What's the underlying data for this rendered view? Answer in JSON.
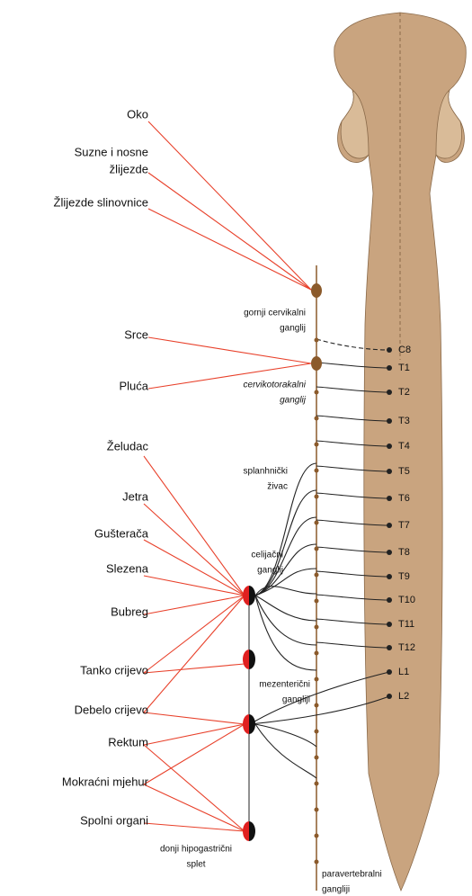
{
  "organs": [
    {
      "lines": [
        "Oko"
      ]
    },
    {
      "lines": [
        "Suzne i nosne",
        "žlijezde"
      ]
    },
    {
      "lines": [
        "Žlijezde slinovnice"
      ]
    },
    {
      "lines": [
        "Srce"
      ]
    },
    {
      "lines": [
        "Pluća"
      ]
    },
    {
      "lines": [
        "Želudac"
      ]
    },
    {
      "lines": [
        "Jetra"
      ]
    },
    {
      "lines": [
        "Gušterača"
      ]
    },
    {
      "lines": [
        "Slezena"
      ]
    },
    {
      "lines": [
        "Bubreg"
      ]
    },
    {
      "lines": [
        "Tanko crijevo"
      ]
    },
    {
      "lines": [
        "Debelo crijevo"
      ]
    },
    {
      "lines": [
        "Rektum"
      ]
    },
    {
      "lines": [
        "Mokraćni mjehur"
      ]
    },
    {
      "lines": [
        "Spolni organi"
      ]
    }
  ],
  "ganglia": [
    {
      "lines": [
        "gornji cervikalni",
        "ganglij"
      ]
    },
    {
      "lines": [
        "cervikotorakalni",
        "ganglij"
      ]
    },
    {
      "lines": [
        "splanhnički",
        "živac"
      ]
    },
    {
      "lines": [
        "celijačni",
        "ganglij"
      ]
    },
    {
      "lines": [
        "mezenterični",
        "gangliji"
      ]
    },
    {
      "lines": [
        "donji hipogastrični",
        "splet"
      ]
    },
    {
      "lines": [
        "paravertebralni",
        "gangliji"
      ]
    }
  ],
  "segments": [
    "C8",
    "T1",
    "T2",
    "T3",
    "T4",
    "T5",
    "T6",
    "T7",
    "T8",
    "T9",
    "T10",
    "T11",
    "T12",
    "L1",
    "L2"
  ]
}
